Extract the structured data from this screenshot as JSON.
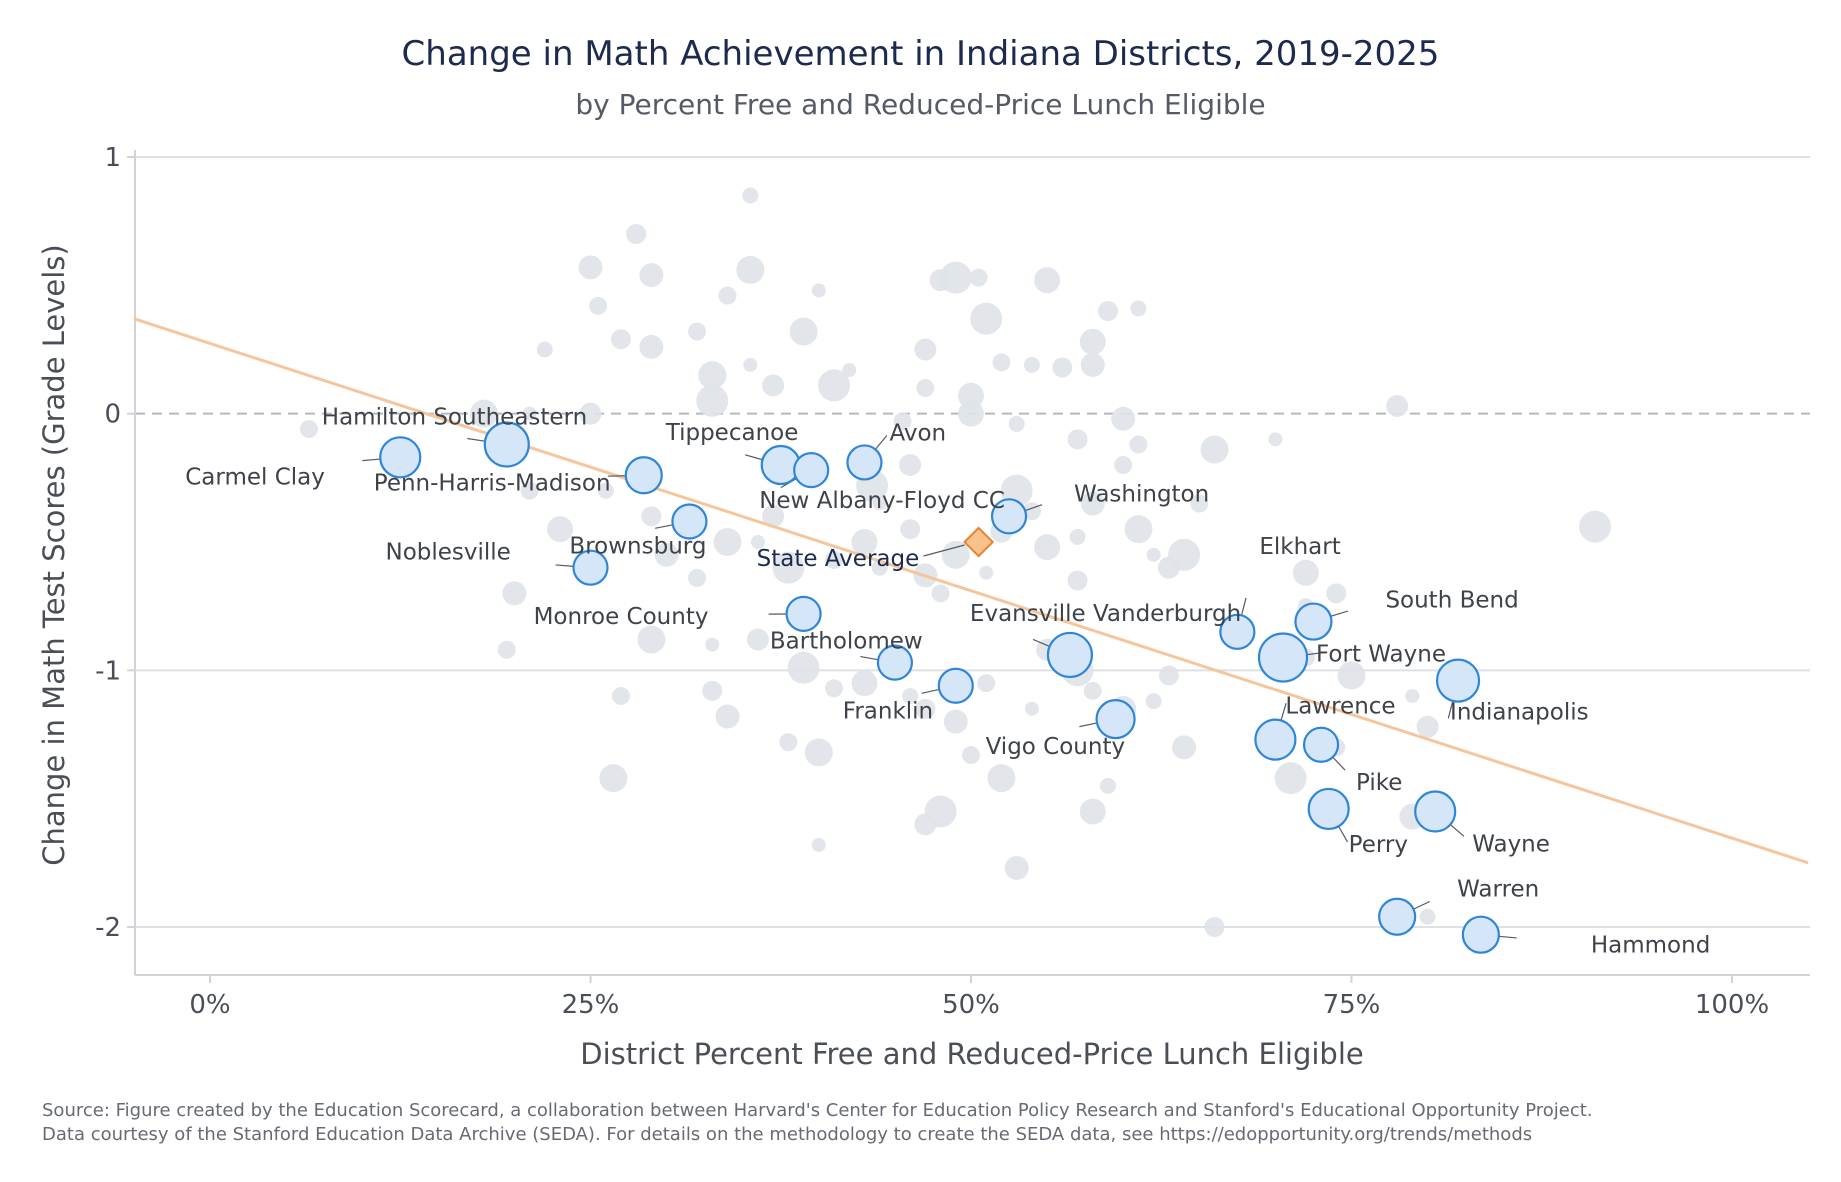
{
  "chart_data": {
    "type": "scatter",
    "title": "Change in Math Achievement in Indiana Districts, 2019-2025",
    "subtitle": "by Percent Free and Reduced-Price Lunch Eligible",
    "xlabel": "District Percent Free and Reduced-Price Lunch Eligible",
    "ylabel": "Change in Math Test Scores (Grade Levels)",
    "xlim": [
      -5,
      105
    ],
    "ylim": [
      -2.18,
      1.05
    ],
    "x_ticks": [
      0,
      25,
      50,
      75,
      100
    ],
    "x_tick_labels": [
      "0%",
      "25%",
      "50%",
      "75%",
      "100%"
    ],
    "y_ticks": [
      1,
      0,
      -1,
      -2
    ],
    "y_tick_labels": [
      "1",
      "0",
      "-1",
      "-2"
    ],
    "grid": "horizontal",
    "zero_reference_line": "dashed",
    "trend_line": {
      "x": [
        -5,
        105
      ],
      "y": [
        0.37,
        -1.75
      ],
      "color": "#f5c69c"
    },
    "colors": {
      "background_points": "#dfe3e9",
      "highlight_fill": "#d4e6f8",
      "highlight_stroke": "#2f86d6",
      "state_average_fill": "#f8c28c",
      "state_average_stroke": "#e8822f"
    },
    "highlighted_districts": [
      {
        "name": "Carmel Clay",
        "x": 12.5,
        "y": -0.17
      },
      {
        "name": "Hamilton Southeastern",
        "x": 19.5,
        "y": -0.12
      },
      {
        "name": "Penn-Harris-Madison",
        "x": 28.5,
        "y": -0.24
      },
      {
        "name": "Noblesville",
        "x": 25,
        "y": -0.6
      },
      {
        "name": "Brownsburg",
        "x": 31.5,
        "y": -0.42
      },
      {
        "name": "Tippecanoe",
        "x": 37.5,
        "y": -0.2
      },
      {
        "name": "New Albany-Floyd CC",
        "x": 39.5,
        "y": -0.22
      },
      {
        "name": "Avon",
        "x": 43,
        "y": -0.19
      },
      {
        "name": "Washington",
        "x": 52.5,
        "y": -0.4
      },
      {
        "name": "Monroe County",
        "x": 39,
        "y": -0.78
      },
      {
        "name": "Bartholomew",
        "x": 45,
        "y": -0.97
      },
      {
        "name": "Franklin",
        "x": 49,
        "y": -1.06
      },
      {
        "name": "Evansville Vanderburgh",
        "x": 56.5,
        "y": -0.94
      },
      {
        "name": "Vigo County",
        "x": 59.5,
        "y": -1.19
      },
      {
        "name": "Elkhart",
        "x": 67.5,
        "y": -0.85
      },
      {
        "name": "South Bend",
        "x": 72.5,
        "y": -0.81
      },
      {
        "name": "Fort Wayne",
        "x": 70.5,
        "y": -0.95
      },
      {
        "name": "Indianapolis",
        "x": 82,
        "y": -1.04
      },
      {
        "name": "Lawrence",
        "x": 70,
        "y": -1.27
      },
      {
        "name": "Pike",
        "x": 73,
        "y": -1.29
      },
      {
        "name": "Perry",
        "x": 73.5,
        "y": -1.54
      },
      {
        "name": "Wayne",
        "x": 80.5,
        "y": -1.55
      },
      {
        "name": "Warren",
        "x": 78,
        "y": -1.96
      },
      {
        "name": "Hammond",
        "x": 83.5,
        "y": -2.03
      }
    ],
    "state_average": {
      "label": "State Average",
      "x": 50.5,
      "y": -0.5
    },
    "other_districts": [
      [
        35.5,
        0.85
      ],
      [
        28,
        0.7
      ],
      [
        29,
        0.54
      ],
      [
        34,
        0.46
      ],
      [
        35.5,
        0.56
      ],
      [
        40,
        0.48
      ],
      [
        48,
        0.52
      ],
      [
        49,
        0.53
      ],
      [
        50.5,
        0.53
      ],
      [
        55,
        0.52
      ],
      [
        22,
        0.25
      ],
      [
        27,
        0.29
      ],
      [
        29,
        0.26
      ],
      [
        32,
        0.32
      ],
      [
        39,
        0.32
      ],
      [
        42,
        0.17
      ],
      [
        47,
        0.25
      ],
      [
        51,
        0.37
      ],
      [
        52,
        0.2
      ],
      [
        58,
        0.28
      ],
      [
        61,
        0.41
      ],
      [
        59,
        0.4
      ],
      [
        25,
        0.57
      ],
      [
        25.5,
        0.42
      ],
      [
        33,
        0.15
      ],
      [
        35.5,
        0.19
      ],
      [
        37,
        0.11
      ],
      [
        41,
        0.11
      ],
      [
        47,
        0.1
      ],
      [
        50,
        0.07
      ],
      [
        54,
        0.19
      ],
      [
        56,
        0.18
      ],
      [
        58,
        0.19
      ],
      [
        6.5,
        -0.06
      ],
      [
        18,
        0
      ],
      [
        21,
        0
      ],
      [
        25,
        0
      ],
      [
        33,
        0.05
      ],
      [
        45.5,
        -0.03
      ],
      [
        50,
        0
      ],
      [
        53,
        -0.04
      ],
      [
        57,
        -0.1
      ],
      [
        60,
        -0.02
      ],
      [
        61,
        -0.12
      ],
      [
        66,
        -0.14
      ],
      [
        70,
        -0.1
      ],
      [
        78,
        0.03
      ],
      [
        91,
        -0.44
      ],
      [
        21,
        -0.3
      ],
      [
        23,
        -0.45
      ],
      [
        26,
        -0.3
      ],
      [
        29,
        -0.4
      ],
      [
        30,
        -0.55
      ],
      [
        32,
        -0.64
      ],
      [
        34,
        -0.5
      ],
      [
        36,
        -0.5
      ],
      [
        37,
        -0.4
      ],
      [
        38,
        -0.6
      ],
      [
        41,
        -0.57
      ],
      [
        43,
        -0.5
      ],
      [
        44,
        -0.6
      ],
      [
        46,
        -0.45
      ],
      [
        47,
        -0.63
      ],
      [
        48,
        -0.7
      ],
      [
        49,
        -0.55
      ],
      [
        51,
        -0.62
      ],
      [
        52,
        -0.46
      ],
      [
        53,
        -0.3
      ],
      [
        54,
        -0.38
      ],
      [
        55,
        -0.52
      ],
      [
        57,
        -0.48
      ],
      [
        57,
        -0.65
      ],
      [
        58,
        -0.35
      ],
      [
        60,
        -0.2
      ],
      [
        61,
        -0.45
      ],
      [
        62,
        -0.55
      ],
      [
        63,
        -0.6
      ],
      [
        64,
        -0.55
      ],
      [
        65,
        -0.35
      ],
      [
        72,
        -0.62
      ],
      [
        72,
        -0.75
      ],
      [
        74,
        -0.7
      ],
      [
        20,
        -0.7
      ],
      [
        19.5,
        -0.92
      ],
      [
        29,
        -0.88
      ],
      [
        33,
        -0.9
      ],
      [
        36,
        -0.88
      ],
      [
        39,
        -0.99
      ],
      [
        41,
        -1.07
      ],
      [
        43,
        -1.05
      ],
      [
        46,
        -1.1
      ],
      [
        47,
        -1.15
      ],
      [
        49,
        -1.2
      ],
      [
        51,
        -1.05
      ],
      [
        52,
        -1.42
      ],
      [
        54,
        -1.15
      ],
      [
        55,
        -0.92
      ],
      [
        57,
        -1.0
      ],
      [
        58,
        -1.08
      ],
      [
        60,
        -1.15
      ],
      [
        62,
        -1.12
      ],
      [
        63,
        -1.02
      ],
      [
        64,
        -1.3
      ],
      [
        72,
        -0.95
      ],
      [
        75,
        -1.02
      ],
      [
        79,
        -1.1
      ],
      [
        80,
        -1.22
      ],
      [
        71,
        -1.42
      ],
      [
        74,
        -1.3
      ],
      [
        79,
        -1.57
      ],
      [
        80,
        -1.96
      ],
      [
        33,
        -1.08
      ],
      [
        34,
        -1.18
      ],
      [
        38,
        -1.28
      ],
      [
        40,
        -1.32
      ],
      [
        40,
        -1.68
      ],
      [
        47,
        -1.6
      ],
      [
        48,
        -1.55
      ],
      [
        50,
        -1.33
      ],
      [
        58,
        -1.55
      ],
      [
        59,
        -1.45
      ],
      [
        66,
        -2.0
      ],
      [
        53,
        -1.77
      ],
      [
        27,
        -1.1
      ],
      [
        26.5,
        -1.42
      ],
      [
        44,
        -0.35
      ],
      [
        46,
        -0.2
      ],
      [
        43.5,
        -0.28
      ]
    ]
  },
  "source": {
    "line1": "Source: Figure created by the Education Scorecard, a collaboration between Harvard's Center for Education Policy Research and Stanford's Educational Opportunity Project.",
    "line2": "Data courtesy of the Stanford Education Data Archive (SEDA). For details on the methodology to create the SEDA data, see https://edopportunity.org/trends/methods"
  }
}
